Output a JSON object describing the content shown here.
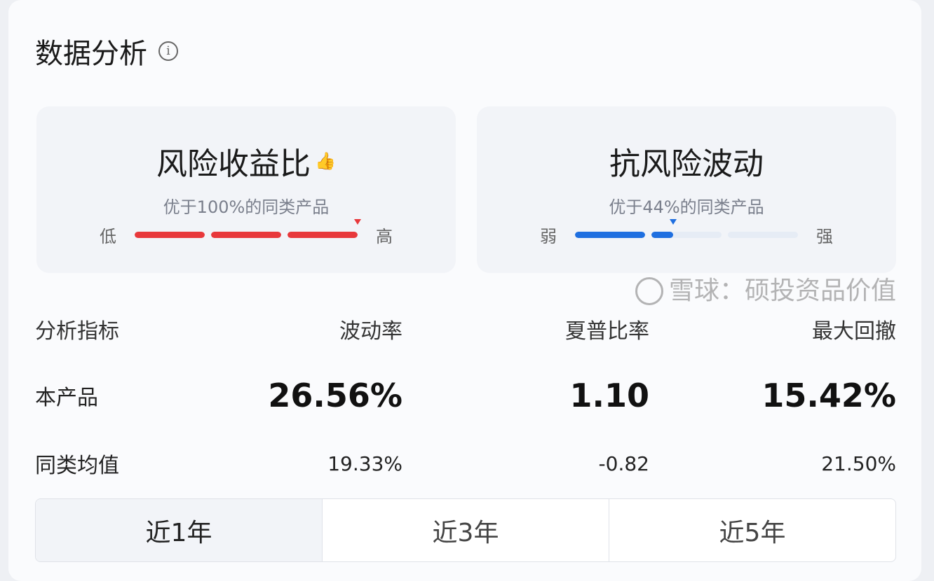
{
  "title": "数据分析",
  "panels": [
    {
      "title": "风险收益比",
      "subtitle": "优于100%的同类产品",
      "low": "低",
      "high": "高",
      "percentile": 100,
      "color": "#e8383b",
      "icon": "thumbs-up-icon"
    },
    {
      "title": "抗风险波动",
      "subtitle": "优于44%的同类产品",
      "low": "弱",
      "high": "强",
      "percentile": 44,
      "color": "#1f6fe0"
    }
  ],
  "table": {
    "headers": [
      "分析指标",
      "波动率",
      "夏普比率",
      "最大回撤"
    ],
    "product": [
      "本产品",
      "26.56%",
      "1.10",
      "15.42%"
    ],
    "average": [
      "同类均值",
      "19.33%",
      "-0.82",
      "21.50%"
    ]
  },
  "tabs": [
    {
      "label": "近1年",
      "active": true
    },
    {
      "label": "近3年"
    },
    {
      "label": "近5年"
    }
  ],
  "watermark": "雪球：硕投资品价值"
}
